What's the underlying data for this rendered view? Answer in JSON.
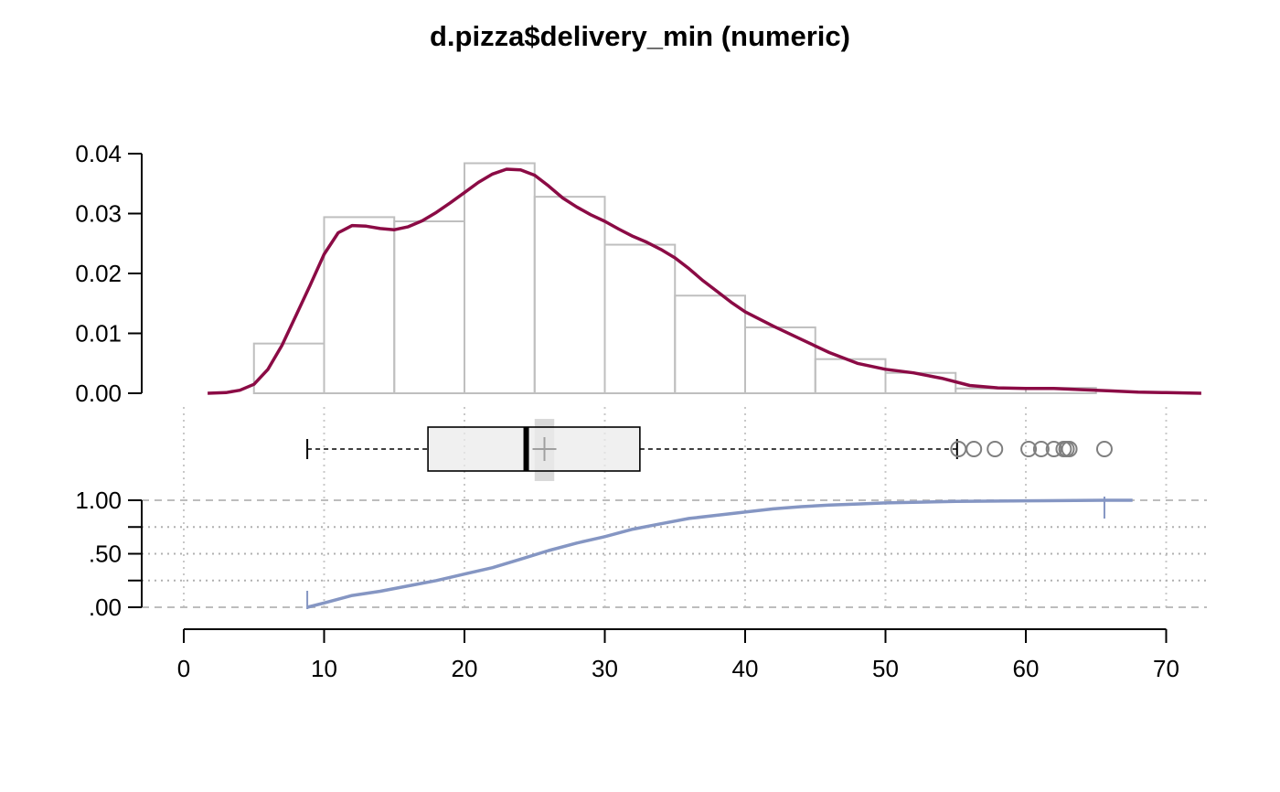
{
  "chart_data": {
    "type": "histogram",
    "title": "d.pizza$delivery_min (numeric)",
    "x_axis": {
      "range": [
        0,
        72
      ],
      "ticks": [
        0,
        10,
        20,
        30,
        40,
        50,
        60,
        70
      ],
      "tick_labels": [
        "0",
        "10",
        "20",
        "30",
        "40",
        "50",
        "60",
        "70"
      ]
    },
    "histogram": {
      "bin_edges": [
        5,
        10,
        15,
        20,
        25,
        30,
        35,
        40,
        45,
        50,
        55,
        60,
        65
      ],
      "density": [
        0.0083,
        0.0294,
        0.0287,
        0.0384,
        0.0328,
        0.0248,
        0.0163,
        0.011,
        0.0057,
        0.0034,
        0.0008,
        0.0009
      ],
      "ylim": [
        0,
        0.04
      ],
      "yticks": [
        0.0,
        0.01,
        0.02,
        0.03,
        0.04
      ],
      "ytick_labels": [
        "0.00",
        "0.01",
        "0.02",
        "0.03",
        "0.04"
      ],
      "bar_color": "#bfbfbf"
    },
    "density_curve": {
      "color": "#8b0b45",
      "x": [
        1.7,
        3,
        4,
        5,
        6,
        7,
        8,
        9,
        10,
        11,
        12,
        13,
        14,
        15,
        16,
        17,
        18,
        19,
        20,
        21,
        22,
        23,
        24,
        25,
        26,
        27,
        28,
        29,
        30,
        31,
        32,
        33,
        34,
        35,
        36,
        37,
        38,
        39,
        40,
        42,
        44,
        46,
        48,
        50,
        52,
        54,
        56,
        58,
        60,
        62,
        64,
        66,
        68,
        70,
        72.5
      ],
      "y": [
        0.0,
        0.0001,
        0.0005,
        0.0015,
        0.004,
        0.008,
        0.013,
        0.018,
        0.0232,
        0.0268,
        0.028,
        0.0279,
        0.0275,
        0.0273,
        0.0278,
        0.0288,
        0.0302,
        0.0318,
        0.0335,
        0.0352,
        0.0366,
        0.0374,
        0.0373,
        0.0364,
        0.0346,
        0.0326,
        0.0311,
        0.0298,
        0.0287,
        0.0274,
        0.0262,
        0.0252,
        0.024,
        0.0226,
        0.0208,
        0.0188,
        0.017,
        0.0152,
        0.0136,
        0.0112,
        0.009,
        0.0068,
        0.005,
        0.004,
        0.0034,
        0.0025,
        0.0013,
        0.0009,
        0.0008,
        0.0008,
        0.0006,
        0.0004,
        0.0002,
        0.0001,
        0.0
      ]
    },
    "boxplot": {
      "whisker_low": 8.8,
      "q1": 17.4,
      "median": 24.4,
      "q3": 32.5,
      "whisker_high": 55.1,
      "mean": 25.7,
      "mean_ci": [
        25.0,
        26.4
      ],
      "outliers": [
        55.2,
        56.3,
        57.8,
        60.2,
        61.1,
        62.0,
        62.7,
        62.9,
        63.1,
        65.6
      ]
    },
    "ecdf": {
      "color": "#8596c3",
      "x": [
        8.8,
        10,
        12,
        14,
        16,
        18,
        20,
        22,
        24,
        26,
        28,
        30,
        32,
        34,
        36,
        38,
        40,
        42,
        44,
        46,
        48,
        50,
        55,
        60,
        65.6
      ],
      "y": [
        0.0,
        0.04,
        0.11,
        0.15,
        0.2,
        0.25,
        0.31,
        0.37,
        0.45,
        0.53,
        0.6,
        0.66,
        0.73,
        0.78,
        0.83,
        0.86,
        0.89,
        0.92,
        0.94,
        0.955,
        0.965,
        0.975,
        0.99,
        0.995,
        1.0
      ],
      "yticks": [
        0,
        0.25,
        0.5,
        0.75,
        1
      ],
      "ytick_labels": [
        ".00",
        ".50",
        "1.00"
      ],
      "ytick_label_values": [
        0,
        0.5,
        1
      ]
    },
    "grid": true
  }
}
